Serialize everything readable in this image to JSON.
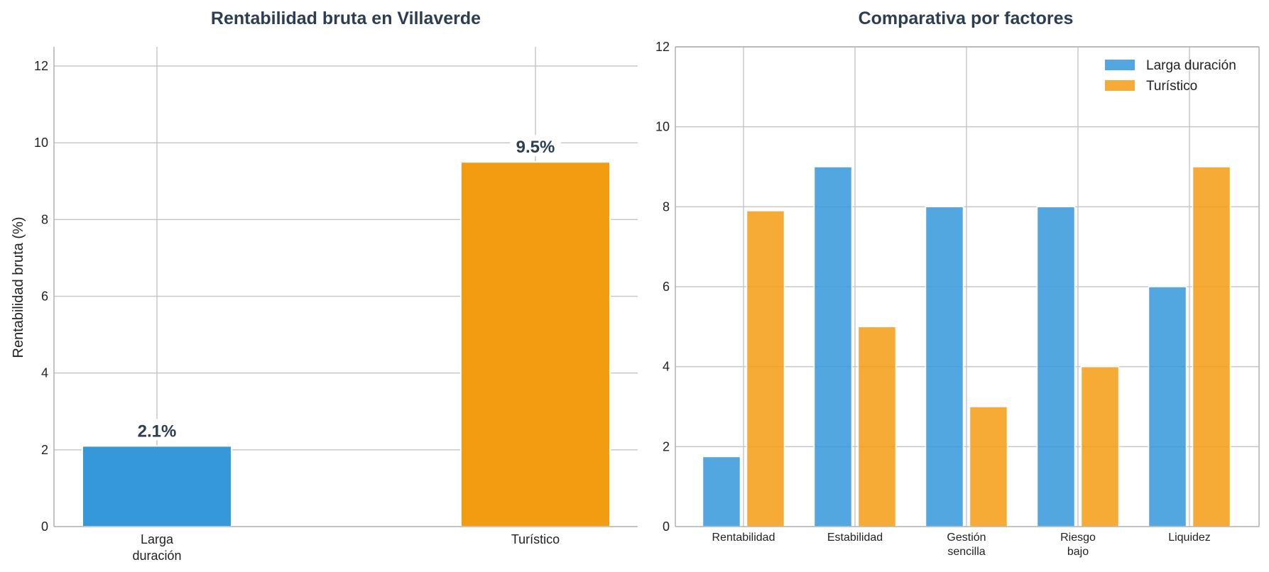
{
  "chart_data": [
    {
      "type": "bar",
      "title": "Rentabilidad bruta en Villaverde",
      "ylabel": "Rentabilidad bruta (%)",
      "xlabel": "",
      "categories": [
        [
          "Larga",
          "duración"
        ],
        [
          "Turístico"
        ]
      ],
      "values": [
        2.1,
        9.5
      ],
      "data_labels": [
        "2.1%",
        "9.5%"
      ],
      "colors": [
        "#3498db",
        "#f39c12"
      ],
      "ylim": [
        0,
        12.5
      ],
      "yticks": [
        0,
        2,
        4,
        6,
        8,
        10,
        12
      ],
      "grid": true
    },
    {
      "type": "bar",
      "title": "Comparativa por factores",
      "categories": [
        [
          "Rentabilidad"
        ],
        [
          "Estabilidad"
        ],
        [
          "Gestión",
          "sencilla"
        ],
        [
          "Riesgo",
          "bajo"
        ],
        [
          "Liquidez"
        ]
      ],
      "series": [
        {
          "name": "Larga duración",
          "values": [
            1.75,
            9,
            8,
            8,
            6
          ],
          "color": "#3498db"
        },
        {
          "name": "Turístico",
          "values": [
            7.9,
            5,
            3,
            4,
            9
          ],
          "color": "#f39c12"
        }
      ],
      "ylim": [
        0,
        12
      ],
      "yticks": [
        0,
        2,
        4,
        6,
        8,
        10,
        12
      ],
      "legend": "top-right",
      "grid": true
    }
  ]
}
